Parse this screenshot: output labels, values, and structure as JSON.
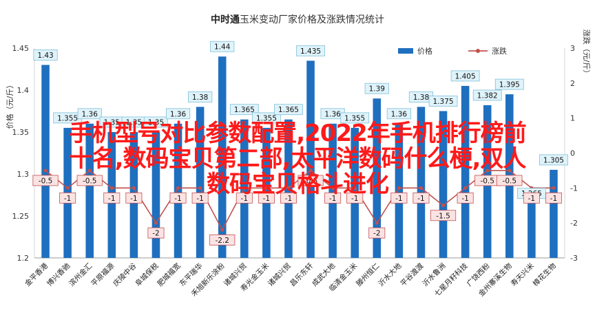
{
  "chart_data": {
    "type": "bar+line",
    "title": "中时通玉米变动厂家价格及涨跌情况统计",
    "title_prefix": "中时通",
    "title_rest": "玉米变动厂家价格及涨跌情况统计",
    "ylabel_left": "价格（元/斤）",
    "ylabel_right": "涨跌（元/斤）",
    "ylim_left": [
      1.2,
      1.45
    ],
    "yticks_left": [
      "1.2",
      "1.25",
      "1.3",
      "1.35",
      "1.4",
      "1.45"
    ],
    "ylim_right": [
      -3,
      3
    ],
    "yticks_right": [
      "-3",
      "-2",
      "-1",
      "0",
      "1",
      "2",
      "3"
    ],
    "legend_position": "top-right",
    "categories": [
      "金平香港",
      "博兴香驰",
      "滨州金汇",
      "平原福源",
      "庆陵中谷",
      "阜城保税",
      "肥城福宽",
      "东平瑞华",
      "禾旭新乐涂粉",
      "诸城兴贸",
      "寿光金玉米",
      "诸城兴贸",
      "昌乐东轩",
      "成武大地",
      "临清金玉米",
      "滕州恒仁",
      "沂水大地",
      "平谷渡渡",
      "沂水鲁洲",
      "七星月籽科技",
      "广饶西粉",
      "金州寨溪生物",
      "寿天兴米",
      "樟花生物"
    ],
    "series": [
      {
        "name": "价格",
        "type": "bar",
        "color": "#1f6fbf",
        "values": [
          1.43,
          1.355,
          1.36,
          1.35,
          1.35,
          1.35,
          1.36,
          1.38,
          1.44,
          1.365,
          1.355,
          1.365,
          1.435,
          1.36,
          1.355,
          1.39,
          1.36,
          1.38,
          1.375,
          1.405,
          1.382,
          1.395,
          1.265,
          1.305
        ],
        "labels": [
          "1.43",
          "1.355",
          "1.36",
          "1.35",
          "1.35",
          "1.35",
          "1.36",
          "1.38",
          "1.44",
          "1.365",
          "1.355",
          "1.365",
          "1.435",
          "1.36",
          "1.355",
          "1.39",
          "1.36",
          "1.38",
          "1.375",
          "1.405",
          "1.382",
          "1.395",
          "1.265",
          "1.305"
        ]
      },
      {
        "name": "涨跌",
        "type": "line",
        "color": "#c0504d",
        "values": [
          -0.5,
          -1,
          -0.5,
          -1,
          -1,
          -2,
          -1,
          -1,
          -2.2,
          -1,
          -1,
          -1,
          -0.5,
          -1,
          -1,
          -2,
          -1,
          -1,
          -1.5,
          -1,
          -0.5,
          -0.5,
          -1,
          -1
        ],
        "labels": [
          "-0.5",
          "-1",
          "-0.5",
          "-1",
          "-1",
          "-2",
          "-1",
          "-1",
          "-2.2",
          "-1",
          "-1",
          "-1",
          "-0.5",
          "-1",
          "-1",
          "-2",
          "-1",
          "-1",
          "-1.5",
          "-1",
          "-0.5",
          "-0.5",
          "-1",
          "-1"
        ]
      }
    ]
  },
  "overlay": {
    "line1": "手机型号对比参数配置,2022年手机排行榜前",
    "line2": "十名,数码宝贝第二部,太平洋数码什么梗,双人",
    "line3": "数码宝贝格斗进化"
  }
}
